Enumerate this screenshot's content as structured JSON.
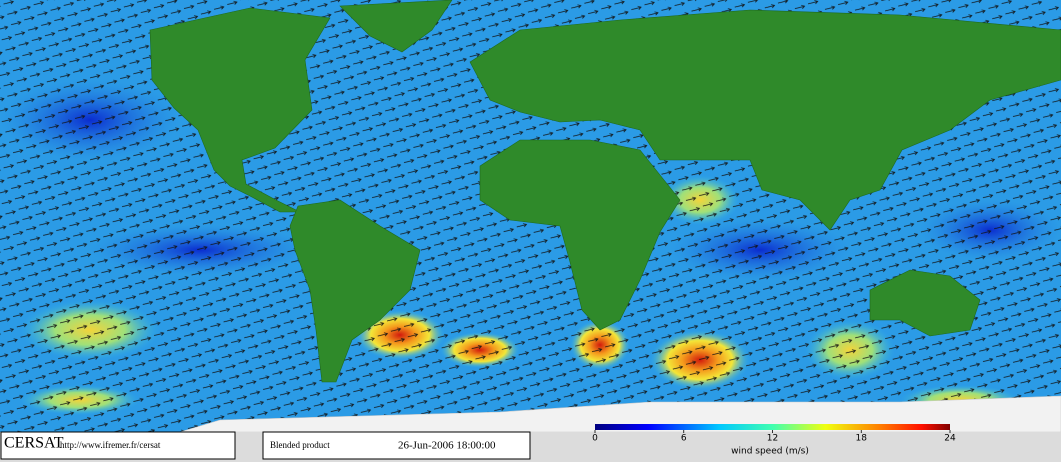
{
  "footer": {
    "logo": "CERSAT",
    "url": "http://www.ifremer.fr/cersat",
    "product": "Blended product",
    "date": "26-Jun-2006 18:00:00"
  },
  "colorbar": {
    "label": "wind speed (m/s)",
    "range": [
      0,
      24
    ],
    "ticks": [
      0,
      6,
      12,
      18,
      24
    ]
  }
}
